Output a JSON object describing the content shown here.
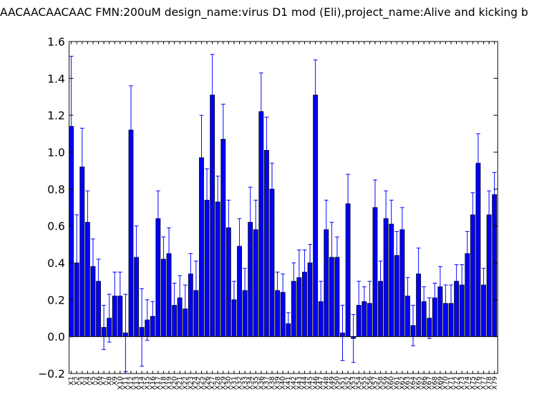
{
  "chart_data": {
    "type": "bar",
    "title": "AACAACAACAAC  FMN:200uM  design_name:virus D1 mod (Eli),project_name:Alive and kicking b",
    "xlabel": "",
    "ylabel": "",
    "ylim": [
      -0.2,
      1.6
    ],
    "yticks": [
      "−0.2",
      "0.0",
      "0.2",
      "0.4",
      "0.6",
      "0.8",
      "1.0",
      "1.2",
      "1.4",
      "1.6"
    ],
    "ytick_values": [
      -0.2,
      0.0,
      0.2,
      0.4,
      0.6,
      0.8,
      1.0,
      1.2,
      1.4,
      1.6
    ],
    "grid": false,
    "bar_color": "#0000ff",
    "error_color": "#0000ff",
    "categories": [
      "X1",
      "X2",
      "X3",
      "X4",
      "X5",
      "X6",
      "X7",
      "X8",
      "X9",
      "X10",
      "X11",
      "X12",
      "X13",
      "X14",
      "X15",
      "X16",
      "X17",
      "X18",
      "X19",
      "X20",
      "X21",
      "X22",
      "X23",
      "X24",
      "X25",
      "X26",
      "X27",
      "X28",
      "X29",
      "X30",
      "X31",
      "X32",
      "X33",
      "X34",
      "X35",
      "X36",
      "X37",
      "X38",
      "X39",
      "X40",
      "X41",
      "X42",
      "X43",
      "X44",
      "X45",
      "X46",
      "X47",
      "X48",
      "X49",
      "X50",
      "X51",
      "X52",
      "X53",
      "X54",
      "X55",
      "X56",
      "X57",
      "X58",
      "X59",
      "X60",
      "X61",
      "X62",
      "X63",
      "X64",
      "X65",
      "X66",
      "X67",
      "X68",
      "X69",
      "X70",
      "X71",
      "X72",
      "X73",
      "X74",
      "X75",
      "X76",
      "X77",
      "X78",
      "X79"
    ],
    "values": [
      1.14,
      0.4,
      0.92,
      0.62,
      0.38,
      0.3,
      0.05,
      0.1,
      0.22,
      0.22,
      0.02,
      1.12,
      0.43,
      0.05,
      0.09,
      0.11,
      0.64,
      0.42,
      0.45,
      0.17,
      0.21,
      0.15,
      0.34,
      0.25,
      0.97,
      0.74,
      1.31,
      0.73,
      1.07,
      0.59,
      0.2,
      0.49,
      0.25,
      0.62,
      0.58,
      1.22,
      1.01,
      0.8,
      0.25,
      0.24,
      0.07,
      0.3,
      0.32,
      0.35,
      0.4,
      1.31,
      0.19,
      0.58,
      0.43,
      0.43,
      0.02,
      0.72,
      -0.01,
      0.17,
      0.19,
      0.18,
      0.7,
      0.3,
      0.64,
      0.61,
      0.44,
      0.58,
      0.22,
      0.06,
      0.34,
      0.19,
      0.1,
      0.21,
      0.27,
      0.18,
      0.18,
      0.3,
      0.28,
      0.45,
      0.66,
      0.94,
      0.28,
      0.66,
      0.77
    ],
    "errors": [
      0.38,
      0.26,
      0.21,
      0.17,
      0.15,
      0.12,
      0.12,
      0.13,
      0.13,
      0.13,
      0.21,
      0.24,
      0.17,
      0.21,
      0.11,
      0.08,
      0.15,
      0.12,
      0.14,
      0.12,
      0.12,
      0.13,
      0.11,
      0.16,
      0.23,
      0.17,
      0.22,
      0.14,
      0.19,
      0.15,
      0.1,
      0.15,
      0.12,
      0.19,
      0.16,
      0.21,
      0.18,
      0.14,
      0.1,
      0.1,
      0.06,
      0.1,
      0.15,
      0.12,
      0.1,
      0.19,
      0.11,
      0.16,
      0.19,
      0.11,
      0.15,
      0.16,
      0.13,
      0.13,
      0.08,
      0.12,
      0.15,
      0.11,
      0.15,
      0.13,
      0.13,
      0.12,
      0.1,
      0.11,
      0.14,
      0.08,
      0.11,
      0.08,
      0.11,
      0.1,
      0.1,
      0.09,
      0.11,
      0.12,
      0.12,
      0.16,
      0.09,
      0.13,
      0.12
    ]
  }
}
